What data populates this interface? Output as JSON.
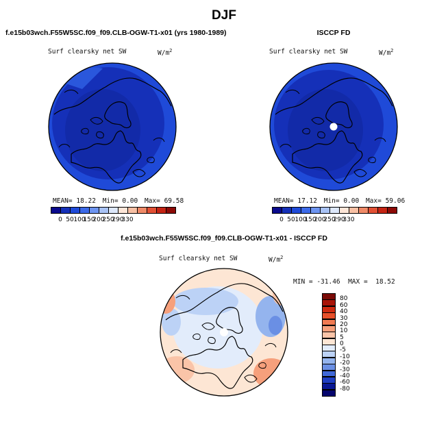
{
  "title": "DJF",
  "panels": [
    {
      "title": "f.e15b03wch.F55W5SC.f09_f09.CLB-OGW-T1-x01 (yrs 1980-1989)",
      "field": "Surf clearsky net SW",
      "units": "W/m",
      "units_exp": "2",
      "stats": {
        "mean_label": "MEAN=",
        "mean": "18.22",
        "min_label": "Min=",
        "min": "0.00",
        "max_label": "Max=",
        "max": "69.58"
      }
    },
    {
      "title": "ISCCP FD",
      "field": "Surf clearsky net SW",
      "units": "W/m",
      "units_exp": "2",
      "stats": {
        "mean_label": "MEAN=",
        "mean": "17.12",
        "min_label": "Min=",
        "min": "0.00",
        "max_label": "Max=",
        "max": "59.06"
      }
    }
  ],
  "abs_colorbar": {
    "tick_labels": [
      "0",
      "50",
      "100",
      "150",
      "200",
      "250",
      "290",
      "330"
    ],
    "colors": [
      "#0a0a8c",
      "#1530b8",
      "#1f4ad8",
      "#3c6ae8",
      "#6d94f0",
      "#a8c2f5",
      "#dde8fb",
      "#fde6d8",
      "#f8c0a4",
      "#f08a68",
      "#e25034",
      "#c52414",
      "#8c0a06"
    ]
  },
  "diff_panel": {
    "title": "f.e15b03wch.F55W5SC.f09_f09.CLB-OGW-T1-x01 - ISCCP FD",
    "field": "Surf clearsky net SW",
    "units": "W/m",
    "units_exp": "2",
    "minmax": "MIN = -31.46  MAX =  18.52",
    "colorbar": {
      "tick_labels": [
        "80",
        "60",
        "40",
        "30",
        "20",
        "10",
        "5",
        "0",
        "-5",
        "-10",
        "-20",
        "-30",
        "-40",
        "-60",
        "-80"
      ],
      "colors": [
        "#7a0a06",
        "#a81408",
        "#cf2a10",
        "#e8502a",
        "#f07a52",
        "#f6a07c",
        "#fac4a8",
        "#fde6d4",
        "#e2ecfb",
        "#bcd2f6",
        "#94b4ee",
        "#6a8fe4",
        "#4068d8",
        "#1f3ec2",
        "#0a1894",
        "#05066e"
      ]
    }
  }
}
